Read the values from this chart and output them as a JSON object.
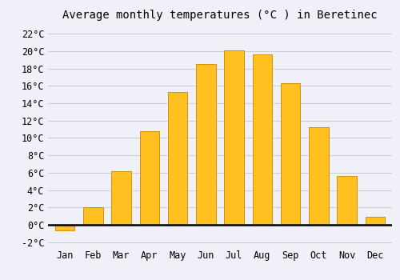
{
  "months": [
    "Jan",
    "Feb",
    "Mar",
    "Apr",
    "May",
    "Jun",
    "Jul",
    "Aug",
    "Sep",
    "Oct",
    "Nov",
    "Dec"
  ],
  "values": [
    -0.7,
    2.0,
    6.2,
    10.8,
    15.3,
    18.5,
    20.1,
    19.6,
    16.3,
    11.2,
    5.6,
    0.9
  ],
  "bar_color": "#FFC020",
  "bar_edge_color": "#D4900A",
  "title": "Average monthly temperatures (°C ) in Beretinec",
  "ylim": [
    -2.5,
    23
  ],
  "yticks": [
    -2,
    0,
    2,
    4,
    6,
    8,
    10,
    12,
    14,
    16,
    18,
    20,
    22
  ],
  "background_color": "#F0F0F8",
  "grid_color": "#CCCCDD",
  "title_fontsize": 10,
  "tick_fontsize": 8.5,
  "font_family": "monospace"
}
